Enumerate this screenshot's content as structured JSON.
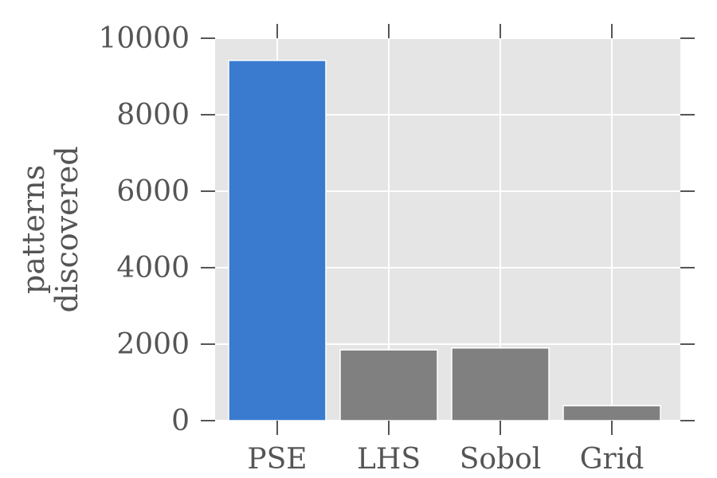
{
  "chart_data": {
    "type": "bar",
    "categories": [
      "PSE",
      "LHS",
      "Sobol",
      "Grid"
    ],
    "values": [
      9420,
      1850,
      1900,
      390
    ],
    "ylabel_lines": [
      "patterns",
      "discovered"
    ],
    "xlabel": "",
    "title": "",
    "ylim": [
      0,
      10000
    ],
    "yticks": [
      0,
      2000,
      4000,
      6000,
      8000,
      10000
    ],
    "ytick_labels": [
      "0",
      "2000",
      "4000",
      "6000",
      "8000",
      "10000"
    ],
    "grid": true,
    "colors": {
      "highlight": "#3a7bd0",
      "default": "#808080",
      "background": "#e5e5e5",
      "grid": "#ffffff",
      "text": "#555555"
    }
  }
}
